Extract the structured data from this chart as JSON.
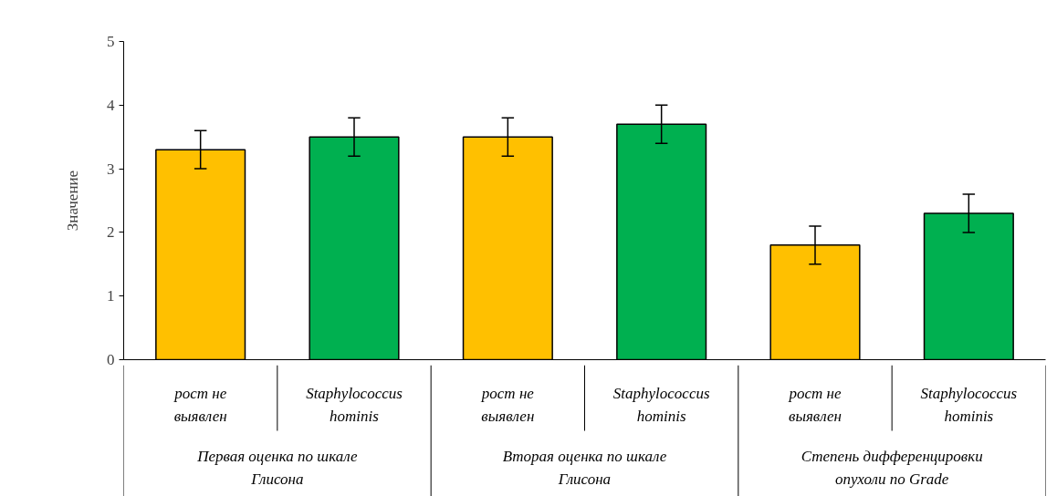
{
  "chart_data": {
    "type": "bar",
    "ylabel": "Значение",
    "categories": [
      "Первая оценка по шкале Глисона",
      "Вторая оценка по шкале Глисона",
      "Степень дифференцировки опухоли по Grade"
    ],
    "series": [
      {
        "name": "рост не выявлен",
        "color": "#ffc000",
        "values": [
          3.3,
          3.5,
          1.8
        ],
        "errors": [
          0.3,
          0.3,
          0.3
        ]
      },
      {
        "name": "Staphylococcus hominis",
        "color": "#00b050",
        "values": [
          3.5,
          3.7,
          2.3
        ],
        "errors": [
          0.3,
          0.3,
          0.3
        ]
      }
    ],
    "ylim": [
      0,
      5
    ],
    "yticks": [
      0,
      1,
      2,
      3,
      4,
      5
    ],
    "grid": false
  }
}
